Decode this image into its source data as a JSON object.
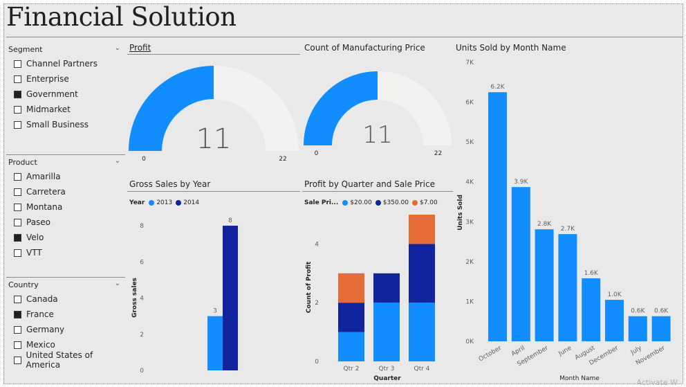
{
  "dashboard": {
    "title": "Financial Solution"
  },
  "slicers": [
    {
      "title": "Segment",
      "items": [
        {
          "label": "Channel Partners",
          "checked": false
        },
        {
          "label": "Enterprise",
          "checked": false
        },
        {
          "label": "Government",
          "checked": true
        },
        {
          "label": "Midmarket",
          "checked": false
        },
        {
          "label": "Small Business",
          "checked": false
        }
      ]
    },
    {
      "title": "Product",
      "items": [
        {
          "label": "Amarilla",
          "checked": false
        },
        {
          "label": "Carretera",
          "checked": false
        },
        {
          "label": "Montana",
          "checked": false
        },
        {
          "label": "Paseo",
          "checked": false
        },
        {
          "label": "Velo",
          "checked": true
        },
        {
          "label": "VTT",
          "checked": false
        }
      ]
    },
    {
      "title": "Country",
      "items": [
        {
          "label": "Canada",
          "checked": false
        },
        {
          "label": "France",
          "checked": true
        },
        {
          "label": "Germany",
          "checked": false
        },
        {
          "label": "Mexico",
          "checked": false
        },
        {
          "label": "United States of America",
          "checked": false
        }
      ]
    }
  ],
  "colors": {
    "blue": "#118dff",
    "navy": "#12239e",
    "orange": "#e66c37",
    "track": "#f3f2f1"
  },
  "gauges": {
    "profit": {
      "title": "Profit",
      "value": 11,
      "min": 0,
      "max": 22,
      "value_label": "11",
      "min_label": "0",
      "max_label": "22"
    },
    "manufacturing": {
      "title": "Count of Manufacturing Price",
      "value": 11,
      "min": 0,
      "max": 22,
      "value_label": "11",
      "min_label": "0",
      "max_label": "22"
    }
  },
  "chart_data": [
    {
      "id": "gross",
      "type": "bar",
      "title": "Gross Sales by Year",
      "legend_title": "Year",
      "ylabel": "Gross sales",
      "ylim": [
        0,
        8
      ],
      "yticks": [
        "0",
        "2",
        "4",
        "6",
        "8"
      ],
      "series": [
        {
          "name": "2013",
          "color": "#118dff",
          "values": [
            3
          ],
          "labels": [
            "3"
          ]
        },
        {
          "name": "2014",
          "color": "#12239e",
          "values": [
            8
          ],
          "labels": [
            "8"
          ]
        }
      ]
    },
    {
      "id": "profit_quarter",
      "type": "bar",
      "stacked": true,
      "title": "Profit by Quarter and Sale Price",
      "legend_title": "Sale Pri...",
      "xlabel": "Quarter",
      "ylabel": "Count of Profit",
      "ylim": [
        0,
        5
      ],
      "yticks": [
        "0",
        "2",
        "4"
      ],
      "categories": [
        "Qtr 2",
        "Qtr 3",
        "Qtr 4"
      ],
      "series": [
        {
          "name": "$20.00",
          "color": "#118dff",
          "values": [
            1,
            2,
            2
          ]
        },
        {
          "name": "$350.00",
          "color": "#12239e",
          "values": [
            1,
            1,
            2
          ]
        },
        {
          "name": "$7.00",
          "color": "#e66c37",
          "values": [
            1,
            0,
            1
          ]
        }
      ]
    },
    {
      "id": "units",
      "type": "bar",
      "title": "Units Sold by Month Name",
      "xlabel": "Month Name",
      "ylabel": "Units Sold",
      "ylim": [
        0,
        7000
      ],
      "yticks": [
        "0K",
        "1K",
        "2K",
        "3K",
        "4K",
        "5K",
        "6K",
        "7K"
      ],
      "categories": [
        "October",
        "April",
        "September",
        "June",
        "August",
        "December",
        "July",
        "November"
      ],
      "values": [
        6250,
        3870,
        2810,
        2690,
        1580,
        1040,
        630,
        630
      ],
      "labels": [
        "6.2K",
        "3.9K",
        "2.8K",
        "2.7K",
        "1.6K",
        "1.0K",
        "0.6K",
        "0.6K"
      ],
      "color": "#118dff"
    }
  ],
  "watermark": "Activate W"
}
